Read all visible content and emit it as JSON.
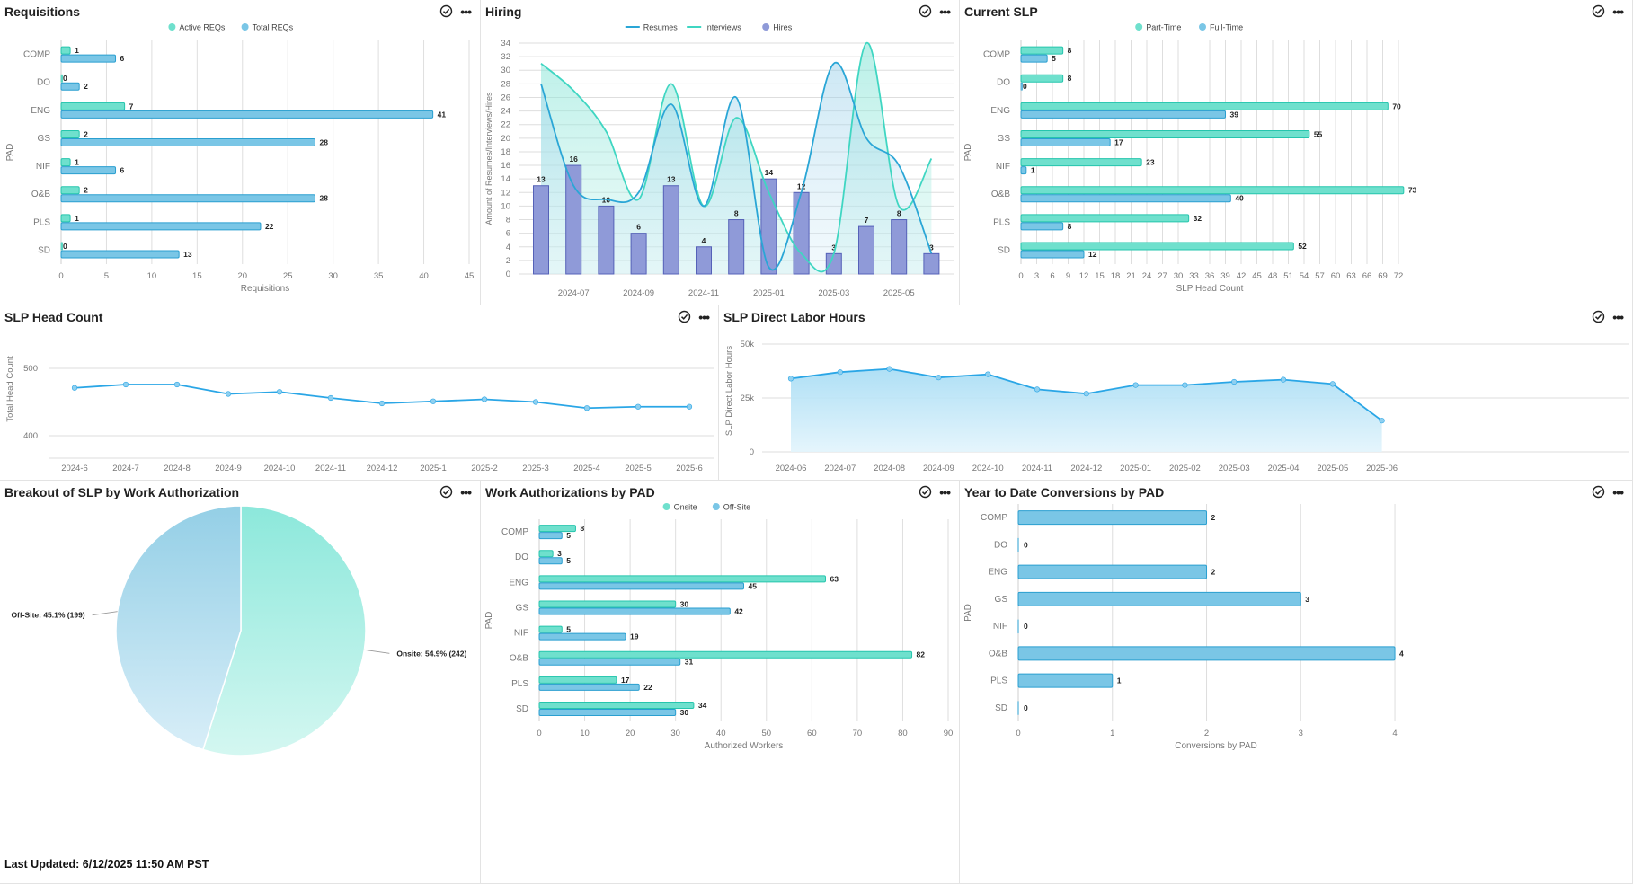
{
  "panels": {
    "requisitions": {
      "title": "Requisitions",
      "chart_data": {
        "type": "bar",
        "orientation": "horizontal",
        "categories": [
          "COMP",
          "DO",
          "ENG",
          "GS",
          "NIF",
          "O&B",
          "PLS",
          "SD"
        ],
        "series": [
          {
            "name": "Active REQs",
            "values": [
              1,
              0,
              7,
              2,
              1,
              2,
              1,
              0
            ],
            "color": "#6fe0cd"
          },
          {
            "name": "Total REQs",
            "values": [
              6,
              2,
              41,
              28,
              6,
              28,
              22,
              13
            ],
            "color": "#7ac6e6"
          }
        ],
        "xlabel": "Requisitions",
        "ylabel": "PAD",
        "xlim": [
          0,
          45
        ],
        "xticks": [
          0,
          5,
          10,
          15,
          20,
          25,
          30,
          35,
          40,
          45
        ],
        "legend": "top-center",
        "grid": "vertical"
      }
    },
    "hiring": {
      "title": "Hiring",
      "chart_data": {
        "type": "bar+line",
        "x": [
          "2024-06",
          "2024-07",
          "2024-08",
          "2024-09",
          "2024-10",
          "2024-11",
          "2024-12",
          "2025-01",
          "2025-02",
          "2025-03",
          "2025-04",
          "2025-05",
          "2025-06"
        ],
        "xtick_labels": [
          "2024-07",
          "2024-09",
          "2024-11",
          "2025-01",
          "2025-03",
          "2025-05"
        ],
        "series": [
          {
            "name": "Resumes",
            "type": "line",
            "values": [
              28,
              13,
              11,
              12,
              25,
              10,
              26,
              1,
              12,
              31,
              20,
              16,
              3
            ],
            "color": "#2aa6d6"
          },
          {
            "name": "Interviews",
            "type": "area",
            "values": [
              31,
              27,
              21,
              11,
              28,
              10,
              23,
              12,
              3,
              3,
              34,
              10,
              17
            ],
            "color": "#3fd6c2"
          },
          {
            "name": "Hires",
            "type": "bar",
            "values": [
              13,
              16,
              10,
              6,
              13,
              4,
              8,
              14,
              12,
              3,
              7,
              8,
              3
            ],
            "color": "#8f9ad8"
          }
        ],
        "ylabel": "Amount of Resumes/Interviews/Hires",
        "ylim": [
          0,
          34
        ],
        "yticks": [
          0,
          2,
          4,
          6,
          8,
          10,
          12,
          14,
          16,
          18,
          20,
          22,
          24,
          26,
          28,
          30,
          32,
          34
        ],
        "legend": "top-center",
        "grid": "horizontal"
      }
    },
    "current_slp": {
      "title": "Current SLP",
      "chart_data": {
        "type": "bar",
        "orientation": "horizontal",
        "categories": [
          "COMP",
          "DO",
          "ENG",
          "GS",
          "NIF",
          "O&B",
          "PLS",
          "SD"
        ],
        "series": [
          {
            "name": "Part-Time",
            "values": [
              8,
              8,
              70,
              55,
              23,
              73,
              32,
              52
            ],
            "color": "#6fe0cd"
          },
          {
            "name": "Full-Time",
            "values": [
              5,
              0,
              39,
              17,
              1,
              40,
              8,
              12
            ],
            "color": "#7ac6e6"
          }
        ],
        "xlabel": "SLP Head Count",
        "ylabel": "PAD",
        "xlim": [
          0,
          72
        ],
        "xticks": [
          0,
          3,
          6,
          9,
          12,
          15,
          18,
          21,
          24,
          27,
          30,
          33,
          36,
          39,
          42,
          45,
          48,
          51,
          54,
          57,
          60,
          63,
          66,
          69,
          72
        ],
        "legend": "top-center",
        "grid": "vertical"
      }
    },
    "slp_head_count": {
      "title": "SLP Head Count",
      "chart_data": {
        "type": "line",
        "x": [
          "2024-6",
          "2024-7",
          "2024-8",
          "2024-9",
          "2024-10",
          "2024-11",
          "2024-12",
          "2025-1",
          "2025-2",
          "2025-3",
          "2025-4",
          "2025-5",
          "2025-6"
        ],
        "values": [
          471,
          476,
          476,
          462,
          465,
          456,
          448,
          451,
          454,
          450,
          441,
          443,
          443
        ],
        "ylabel": "Total Head Count",
        "ylim": [
          370,
          520
        ],
        "yticks": [
          400,
          500
        ],
        "color": "#2aa6e6",
        "grid": "horizontal"
      }
    },
    "slp_direct_labor": {
      "title": "SLP Direct Labor Hours",
      "chart_data": {
        "type": "area",
        "x": [
          "2024-06",
          "2024-07",
          "2024-08",
          "2024-09",
          "2024-10",
          "2024-11",
          "2024-12",
          "2025-01",
          "2025-02",
          "2025-03",
          "2025-04",
          "2025-05",
          "2025-06"
        ],
        "values": [
          34000,
          37000,
          38500,
          34500,
          36000,
          29000,
          27000,
          31000,
          31000,
          32500,
          33500,
          31500,
          14500
        ],
        "ylabel": "SLP Direct Labor Hours",
        "ylim": [
          0,
          50000
        ],
        "yticks": [
          0,
          25000,
          50000
        ],
        "ytick_labels": [
          "0",
          "25k",
          "50k"
        ],
        "color": "#2aa6e6",
        "grid": "horizontal"
      }
    },
    "breakout_slp": {
      "title": "Breakout of SLP by Work Authorization",
      "chart_data": {
        "type": "pie",
        "slices": [
          {
            "name": "Onsite",
            "percent": 54.9,
            "value": 242,
            "label": "Onsite: 54.9% (242)",
            "color": "#8fe8dc"
          },
          {
            "name": "Off-Site",
            "percent": 45.1,
            "value": 199,
            "label": "Off-Site: 45.1% (199)",
            "color": "#9ed2e8"
          }
        ]
      }
    },
    "work_auth_pad": {
      "title": "Work Authorizations by PAD",
      "chart_data": {
        "type": "bar",
        "orientation": "horizontal",
        "categories": [
          "COMP",
          "DO",
          "ENG",
          "GS",
          "NIF",
          "O&B",
          "PLS",
          "SD"
        ],
        "series": [
          {
            "name": "Onsite",
            "values": [
              8,
              3,
              63,
              30,
              5,
              82,
              17,
              34
            ],
            "color": "#6fe0cd"
          },
          {
            "name": "Off-Site",
            "values": [
              5,
              5,
              45,
              42,
              19,
              31,
              22,
              30
            ],
            "color": "#7ac6e6"
          }
        ],
        "xlabel": "Authorized Workers",
        "ylabel": "PAD",
        "xlim": [
          0,
          90
        ],
        "xticks": [
          0,
          10,
          20,
          30,
          40,
          50,
          60,
          70,
          80,
          90
        ],
        "legend": "top-center",
        "grid": "vertical"
      }
    },
    "ytd_conversions": {
      "title": "Year to Date Conversions by PAD",
      "chart_data": {
        "type": "bar",
        "orientation": "horizontal",
        "categories": [
          "COMP",
          "DO",
          "ENG",
          "GS",
          "NIF",
          "O&B",
          "PLS",
          "SD"
        ],
        "series": [
          {
            "name": "Conversions",
            "values": [
              2,
              0,
              2,
              3,
              0,
              4,
              1,
              0
            ],
            "color": "#7ac6e6"
          }
        ],
        "xlabel": "Conversions by PAD",
        "ylabel": "PAD",
        "xlim": [
          0,
          4.2
        ],
        "xticks": [
          0,
          1,
          2,
          3,
          4
        ],
        "grid": "vertical"
      }
    }
  },
  "footer": {
    "last_updated": "Last Updated: 6/12/2025 11:50 AM PST"
  }
}
